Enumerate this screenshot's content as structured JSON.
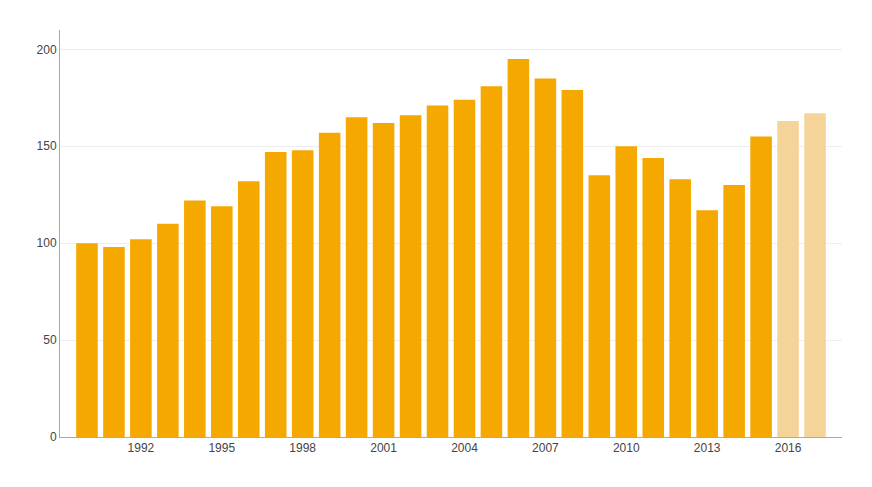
{
  "chart_data": {
    "type": "bar",
    "x": [
      1990,
      1991,
      1992,
      1993,
      1994,
      1995,
      1996,
      1997,
      1998,
      1999,
      2000,
      2001,
      2002,
      2003,
      2004,
      2005,
      2006,
      2007,
      2008,
      2009,
      2010,
      2011,
      2012,
      2013,
      2014,
      2015,
      2016,
      2017
    ],
    "values": [
      100,
      98,
      102,
      110,
      122,
      119,
      132,
      147,
      148,
      157,
      165,
      162,
      166,
      171,
      174,
      181,
      195,
      185,
      179,
      135,
      150,
      144,
      133,
      117,
      130,
      155,
      163,
      167
    ],
    "colors": [
      "#F5A800",
      "#F5A800",
      "#F5A800",
      "#F5A800",
      "#F5A800",
      "#F5A800",
      "#F5A800",
      "#F5A800",
      "#F5A800",
      "#F5A800",
      "#F5A800",
      "#F5A800",
      "#F5A800",
      "#F5A800",
      "#F5A800",
      "#F5A800",
      "#F5A800",
      "#F5A800",
      "#F5A800",
      "#F5A800",
      "#F5A800",
      "#F5A800",
      "#F5A800",
      "#F5A800",
      "#F5A800",
      "#F5A800",
      "#F5D49A",
      "#F5D49A"
    ],
    "xlim": [
      1989,
      2018
    ],
    "xticks": [
      1992,
      1995,
      1998,
      2001,
      2004,
      2007,
      2010,
      2013,
      2016
    ],
    "ylim": [
      0,
      210
    ],
    "yticks": [
      0,
      50,
      100,
      150,
      200
    ],
    "grid": true
  }
}
